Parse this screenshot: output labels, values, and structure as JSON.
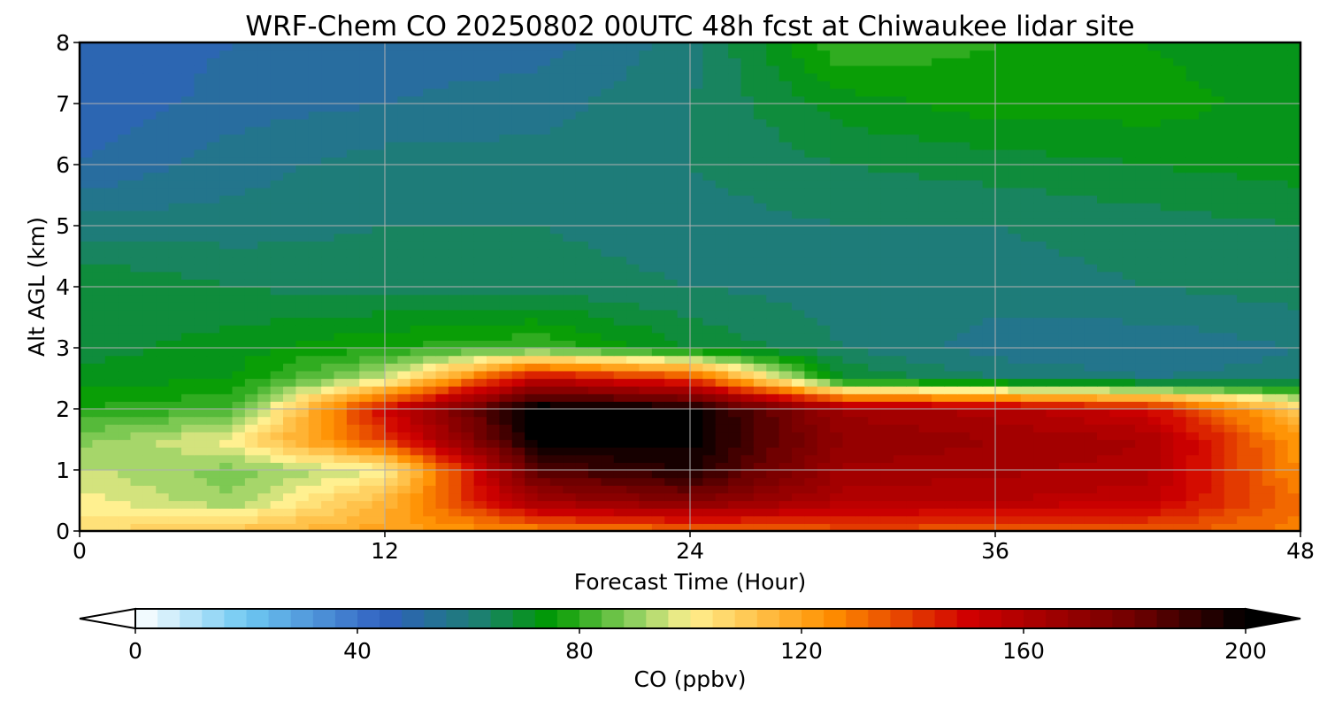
{
  "chart_data": {
    "type": "heatmap",
    "title": "WRF-Chem CO  20250802 00UTC 48h fcst at Chiwaukee lidar site",
    "xlabel": "Forecast Time (Hour)",
    "ylabel": "Alt AGL (km)",
    "xlim": [
      0,
      48
    ],
    "ylim": [
      0,
      8
    ],
    "xticks": [
      0,
      12,
      24,
      36,
      48
    ],
    "yticks": [
      0,
      1,
      2,
      3,
      4,
      5,
      6,
      7,
      8
    ],
    "grid": true,
    "x_hours": [
      0,
      6,
      12,
      18,
      24,
      30,
      36,
      42,
      48
    ],
    "y_km": [
      0,
      0.5,
      1,
      1.5,
      2,
      2.5,
      3,
      4,
      5,
      6,
      7,
      8
    ],
    "values_ppbv": [
      [
        105,
        112,
        120,
        125,
        130,
        135,
        135,
        135,
        128
      ],
      [
        100,
        90,
        115,
        165,
        175,
        160,
        158,
        155,
        130
      ],
      [
        95,
        88,
        98,
        185,
        195,
        165,
        163,
        160,
        125
      ],
      [
        88,
        100,
        140,
        200,
        200,
        170,
        166,
        162,
        122
      ],
      [
        78,
        82,
        150,
        205,
        200,
        165,
        160,
        150,
        110
      ],
      [
        72,
        74,
        95,
        155,
        140,
        70,
        62,
        58,
        60
      ],
      [
        68,
        72,
        78,
        82,
        70,
        62,
        56,
        55,
        58
      ],
      [
        70,
        66,
        64,
        64,
        62,
        60,
        60,
        62,
        64
      ],
      [
        60,
        60,
        62,
        62,
        60,
        62,
        62,
        64,
        66
      ],
      [
        50,
        56,
        60,
        60,
        62,
        66,
        68,
        70,
        72
      ],
      [
        46,
        52,
        54,
        56,
        62,
        72,
        76,
        76,
        72
      ],
      [
        46,
        50,
        52,
        52,
        60,
        82,
        78,
        74,
        70
      ]
    ],
    "colorbar": {
      "label": "CO  (ppbv)",
      "min": 0,
      "max": 200,
      "ticks": [
        0,
        40,
        80,
        120,
        160,
        200
      ],
      "extend": "both",
      "stops": [
        {
          "v": 0,
          "color": "#ffffff"
        },
        {
          "v": 20,
          "color": "#6ec8f2"
        },
        {
          "v": 45,
          "color": "#3060c0"
        },
        {
          "v": 62,
          "color": "#1c8070"
        },
        {
          "v": 75,
          "color": "#009a00"
        },
        {
          "v": 90,
          "color": "#90d060"
        },
        {
          "v": 100,
          "color": "#fff090"
        },
        {
          "v": 125,
          "color": "#ff9000"
        },
        {
          "v": 150,
          "color": "#d00000"
        },
        {
          "v": 180,
          "color": "#700000"
        },
        {
          "v": 200,
          "color": "#000000"
        }
      ]
    }
  }
}
